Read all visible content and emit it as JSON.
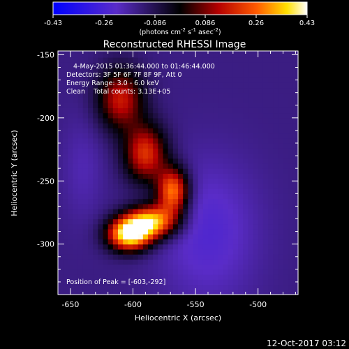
{
  "footer_timestamp": "12-Oct-2017 03:12",
  "colorbar": {
    "min": -0.43,
    "max": 0.43,
    "tick_labels": [
      "-0.43",
      "-0.26",
      "-0.086",
      "0.086",
      "0.26",
      "0.43"
    ],
    "unit_label_prefix": "(photons cm",
    "unit_label_exp1": "-2",
    "unit_label_mid1": " s",
    "unit_label_exp2": "-1",
    "unit_label_mid2": " asec",
    "unit_label_exp3": "-2",
    "unit_label_suffix": ")"
  },
  "annotations": {
    "time_range": "4-May-2015 01:36:44.000 to 01:46:44.000",
    "detectors": "Detectors: 3F 5F 6F 7F 8F 9F, Att 0",
    "energy_range": "Energy Range: 3.0 - 6.0 keV",
    "method_counts": "Clean    Total counts: 3.13E+05",
    "peak_position": "Position of Peak = [-603,-292]"
  },
  "chart_data": {
    "type": "heatmap",
    "title": "Reconstructed RHESSI Image",
    "xlabel": "Heliocentric X (arcsec)",
    "ylabel": "Heliocentric Y (arcsec)",
    "xlim": [
      -660,
      -468
    ],
    "ylim": [
      -340,
      -147
    ],
    "x_ticks": [
      -650,
      -600,
      -550,
      -500
    ],
    "x_tick_labels": [
      "-650",
      "-600",
      "-550",
      "-500"
    ],
    "y_ticks": [
      -150,
      -200,
      -250,
      -300
    ],
    "y_tick_labels": [
      "-150",
      "-200",
      "-250",
      "-300"
    ],
    "colormap": "hot-cold",
    "value_range": [
      -0.43,
      0.43
    ],
    "peak": {
      "x": -603,
      "y": -292,
      "value": 0.43
    },
    "sources": [
      {
        "x": -603,
        "y": -292,
        "peak": 0.43,
        "sx": 12,
        "sy": 9
      },
      {
        "x": -585,
        "y": -282,
        "peak": 0.34,
        "sx": 14,
        "sy": 9
      },
      {
        "x": -568,
        "y": -258,
        "peak": 0.3,
        "sx": 9,
        "sy": 13
      },
      {
        "x": -590,
        "y": -228,
        "peak": 0.2,
        "sx": 12,
        "sy": 16
      },
      {
        "x": -610,
        "y": -185,
        "peak": 0.16,
        "sx": 13,
        "sy": 17
      },
      {
        "x": -540,
        "y": -290,
        "peak": -0.1,
        "sx": 28,
        "sy": 40
      },
      {
        "x": -640,
        "y": -240,
        "peak": -0.05,
        "sx": 12,
        "sy": 30
      }
    ]
  }
}
